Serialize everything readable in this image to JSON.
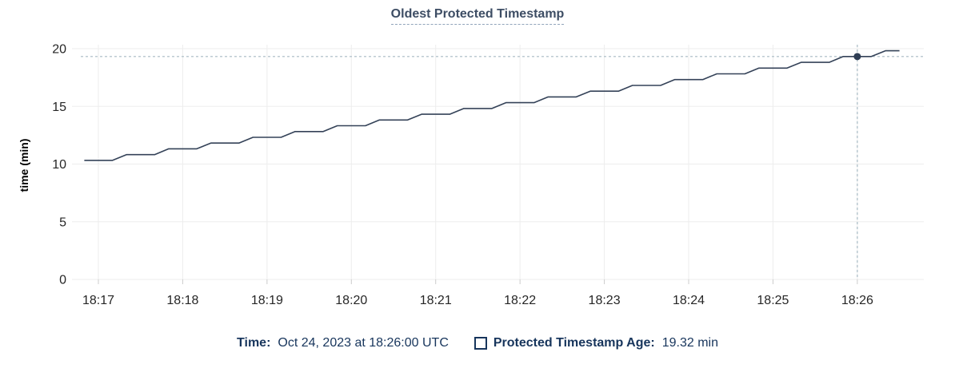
{
  "title": "Oldest Protected Timestamp",
  "chart_data": {
    "type": "line",
    "title": "Oldest Protected Timestamp",
    "xlabel": "",
    "ylabel": "time (min)",
    "ylim": [
      0,
      20
    ],
    "yticks": [
      0,
      5,
      10,
      15,
      20
    ],
    "x_labels": [
      "18:17",
      "18:18",
      "18:19",
      "18:20",
      "18:21",
      "18:22",
      "18:23",
      "18:24",
      "18:25",
      "18:26"
    ],
    "x_tick_interval_seconds": 60,
    "x_start_offset_seconds": -10,
    "x_step_seconds": 10,
    "grid": true,
    "legend_position": "bottom",
    "series": [
      {
        "name": "Protected Timestamp Age",
        "unit": "min"
      }
    ],
    "values": [
      10.32,
      10.32,
      10.32,
      10.82,
      10.82,
      10.82,
      11.32,
      11.32,
      11.32,
      11.82,
      11.82,
      11.82,
      12.32,
      12.32,
      12.32,
      12.82,
      12.82,
      12.82,
      13.32,
      13.32,
      13.32,
      13.82,
      13.82,
      13.82,
      14.32,
      14.32,
      14.32,
      14.82,
      14.82,
      14.82,
      15.32,
      15.32,
      15.32,
      15.82,
      15.82,
      15.82,
      16.32,
      16.32,
      16.32,
      16.82,
      16.82,
      16.82,
      17.32,
      17.32,
      17.32,
      17.82,
      17.82,
      17.82,
      18.32,
      18.32,
      18.32,
      18.82,
      18.82,
      18.82,
      19.32,
      19.32,
      19.32,
      19.82,
      19.82
    ],
    "crosshair": {
      "x_label": "18:26",
      "x_seconds_from_first_tick": 540,
      "value": 19.32
    },
    "colors": {
      "line": "#344258",
      "point": "#2e3d54",
      "grid": "#ededed",
      "tick_mark": "#cccccc",
      "tick_text": "#262626",
      "crosshair": "#a7bac4",
      "title": "#3d4d64",
      "title_underline": "#90a4ba",
      "legend_text": "#17355c"
    }
  },
  "legend": {
    "time_label": "Time:",
    "time_value": "Oct 24, 2023 at 18:26:00 UTC",
    "series_label": "Protected Timestamp Age:",
    "series_value": "19.32 min"
  }
}
